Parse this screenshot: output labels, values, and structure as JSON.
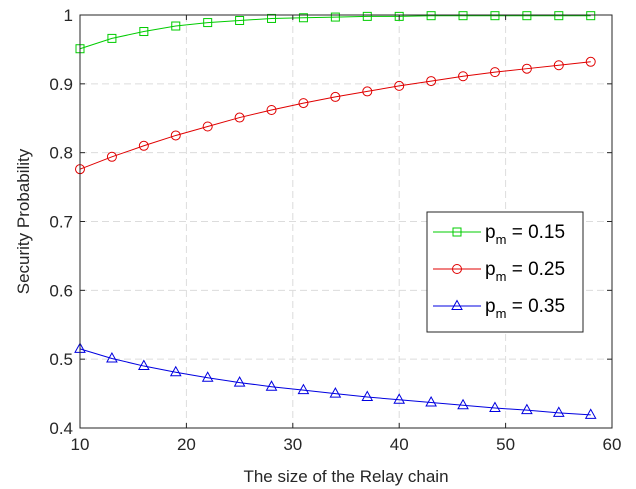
{
  "chart_data": {
    "type": "line",
    "title": "",
    "xlabel": "The size of the Relay chain",
    "ylabel": "Security Probability",
    "xlim": [
      10,
      60
    ],
    "ylim": [
      0.4,
      1
    ],
    "xticks": [
      10,
      20,
      30,
      40,
      50,
      60
    ],
    "yticks": [
      0.4,
      0.5,
      0.6,
      0.7,
      0.8,
      0.9,
      1
    ],
    "xtick_labels": [
      "10",
      "20",
      "30",
      "40",
      "50",
      "60"
    ],
    "ytick_labels": [
      "0.4",
      "0.5",
      "0.6",
      "0.7",
      "0.8",
      "0.9",
      "1"
    ],
    "grid": true,
    "legend_position": "right",
    "x": [
      10,
      13,
      16,
      19,
      22,
      25,
      28,
      31,
      34,
      37,
      40,
      43,
      46,
      49,
      52,
      55,
      58
    ],
    "series": [
      {
        "legend_main": "p",
        "legend_sub": "m",
        "legend_rest": " = 0.15",
        "color": "#00cc00",
        "marker": "square",
        "values": [
          0.951,
          0.966,
          0.976,
          0.984,
          0.989,
          0.992,
          0.995,
          0.996,
          0.997,
          0.998,
          0.998,
          0.999,
          0.999,
          0.999,
          0.999,
          0.999,
          0.999
        ]
      },
      {
        "legend_main": "p",
        "legend_sub": "m",
        "legend_rest": " = 0.25",
        "color": "#e00000",
        "marker": "circle",
        "values": [
          0.776,
          0.794,
          0.81,
          0.825,
          0.838,
          0.851,
          0.862,
          0.872,
          0.881,
          0.889,
          0.897,
          0.904,
          0.911,
          0.917,
          0.922,
          0.927,
          0.932
        ]
      },
      {
        "legend_main": "p",
        "legend_sub": "m",
        "legend_rest": " = 0.35",
        "color": "#0000e0",
        "marker": "triangle",
        "values": [
          0.515,
          0.501,
          0.49,
          0.481,
          0.473,
          0.466,
          0.46,
          0.455,
          0.45,
          0.445,
          0.441,
          0.437,
          0.433,
          0.429,
          0.426,
          0.422,
          0.419
        ]
      }
    ]
  }
}
